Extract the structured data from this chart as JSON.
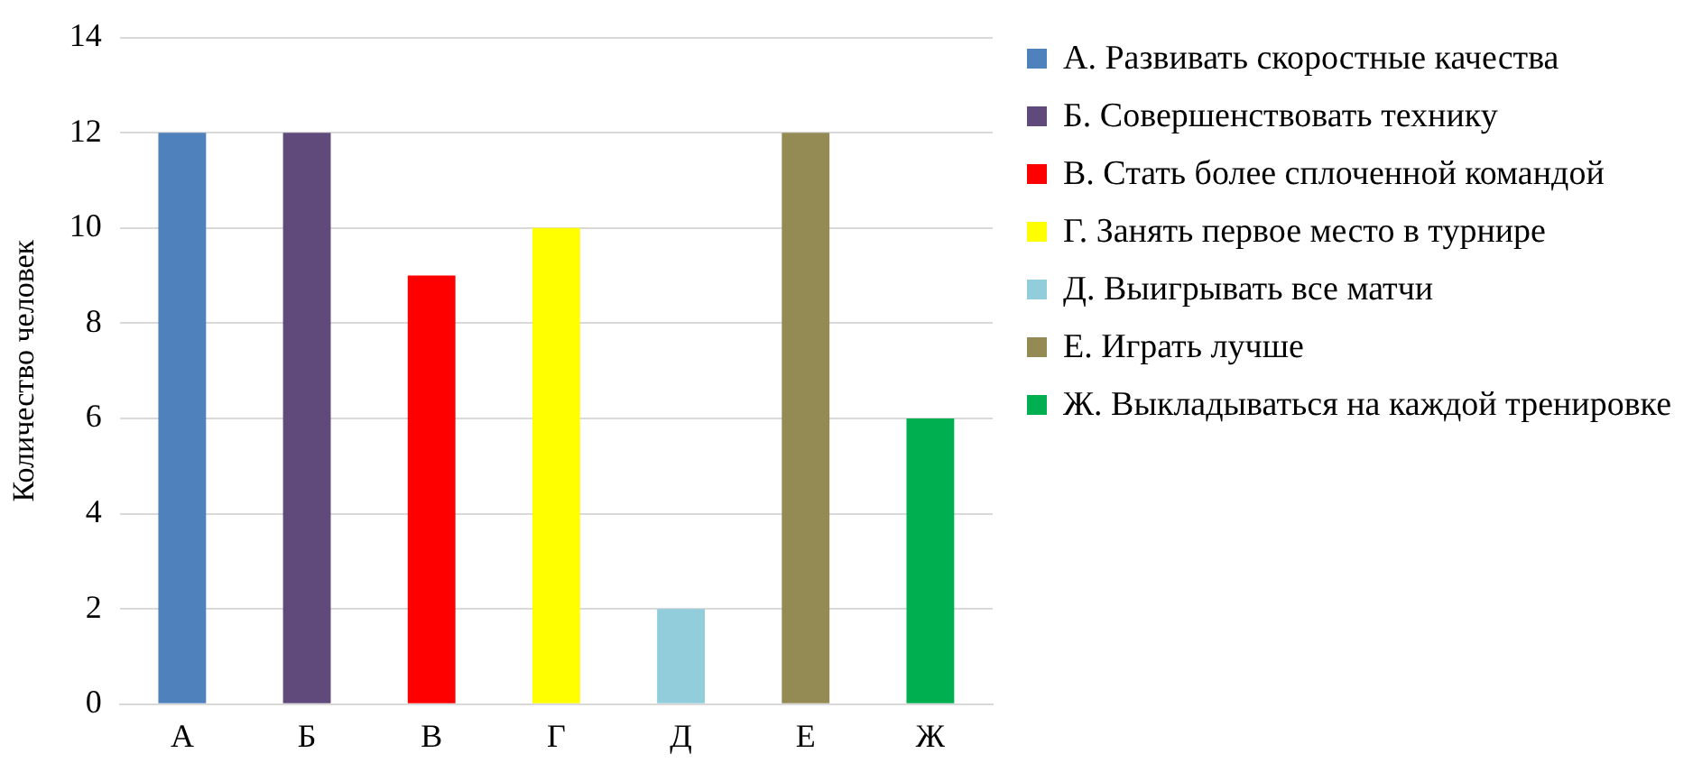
{
  "chart_data": {
    "type": "bar",
    "ylabel": "Количество человек",
    "categories": [
      "А",
      "Б",
      "В",
      "Г",
      "Д",
      "Е",
      "Ж"
    ],
    "series": [
      {
        "name": "А. Развивать скоростные качества",
        "color": "#4f81bd",
        "values": [
          12,
          null,
          null,
          null,
          null,
          null,
          null
        ]
      },
      {
        "name": "Б. Совершенствовать технику",
        "color": "#604a7b",
        "values": [
          null,
          12,
          null,
          null,
          null,
          null,
          null
        ]
      },
      {
        "name": "В. Стать более сплоченной командой",
        "color": "#ff0000",
        "values": [
          null,
          null,
          9,
          null,
          null,
          null,
          null
        ]
      },
      {
        "name": "Г. Занять первое место в турнире",
        "color": "#ffff00",
        "values": [
          null,
          null,
          null,
          10,
          null,
          null,
          null
        ]
      },
      {
        "name": "Д. Выигрывать все матчи",
        "color": "#92cddc",
        "values": [
          null,
          null,
          null,
          null,
          2,
          null,
          null
        ]
      },
      {
        "name": "Е. Играть лучше",
        "color": "#948a54",
        "values": [
          null,
          null,
          null,
          null,
          null,
          12,
          null
        ]
      },
      {
        "name": "Ж. Выкладываться на каждой тренировке",
        "color": "#00b050",
        "values": [
          null,
          null,
          null,
          null,
          null,
          null,
          6
        ]
      }
    ],
    "ylim": [
      0,
      14
    ],
    "yticks": [
      0,
      2,
      4,
      6,
      8,
      10,
      12,
      14
    ],
    "grid": "y",
    "legend": "right"
  }
}
